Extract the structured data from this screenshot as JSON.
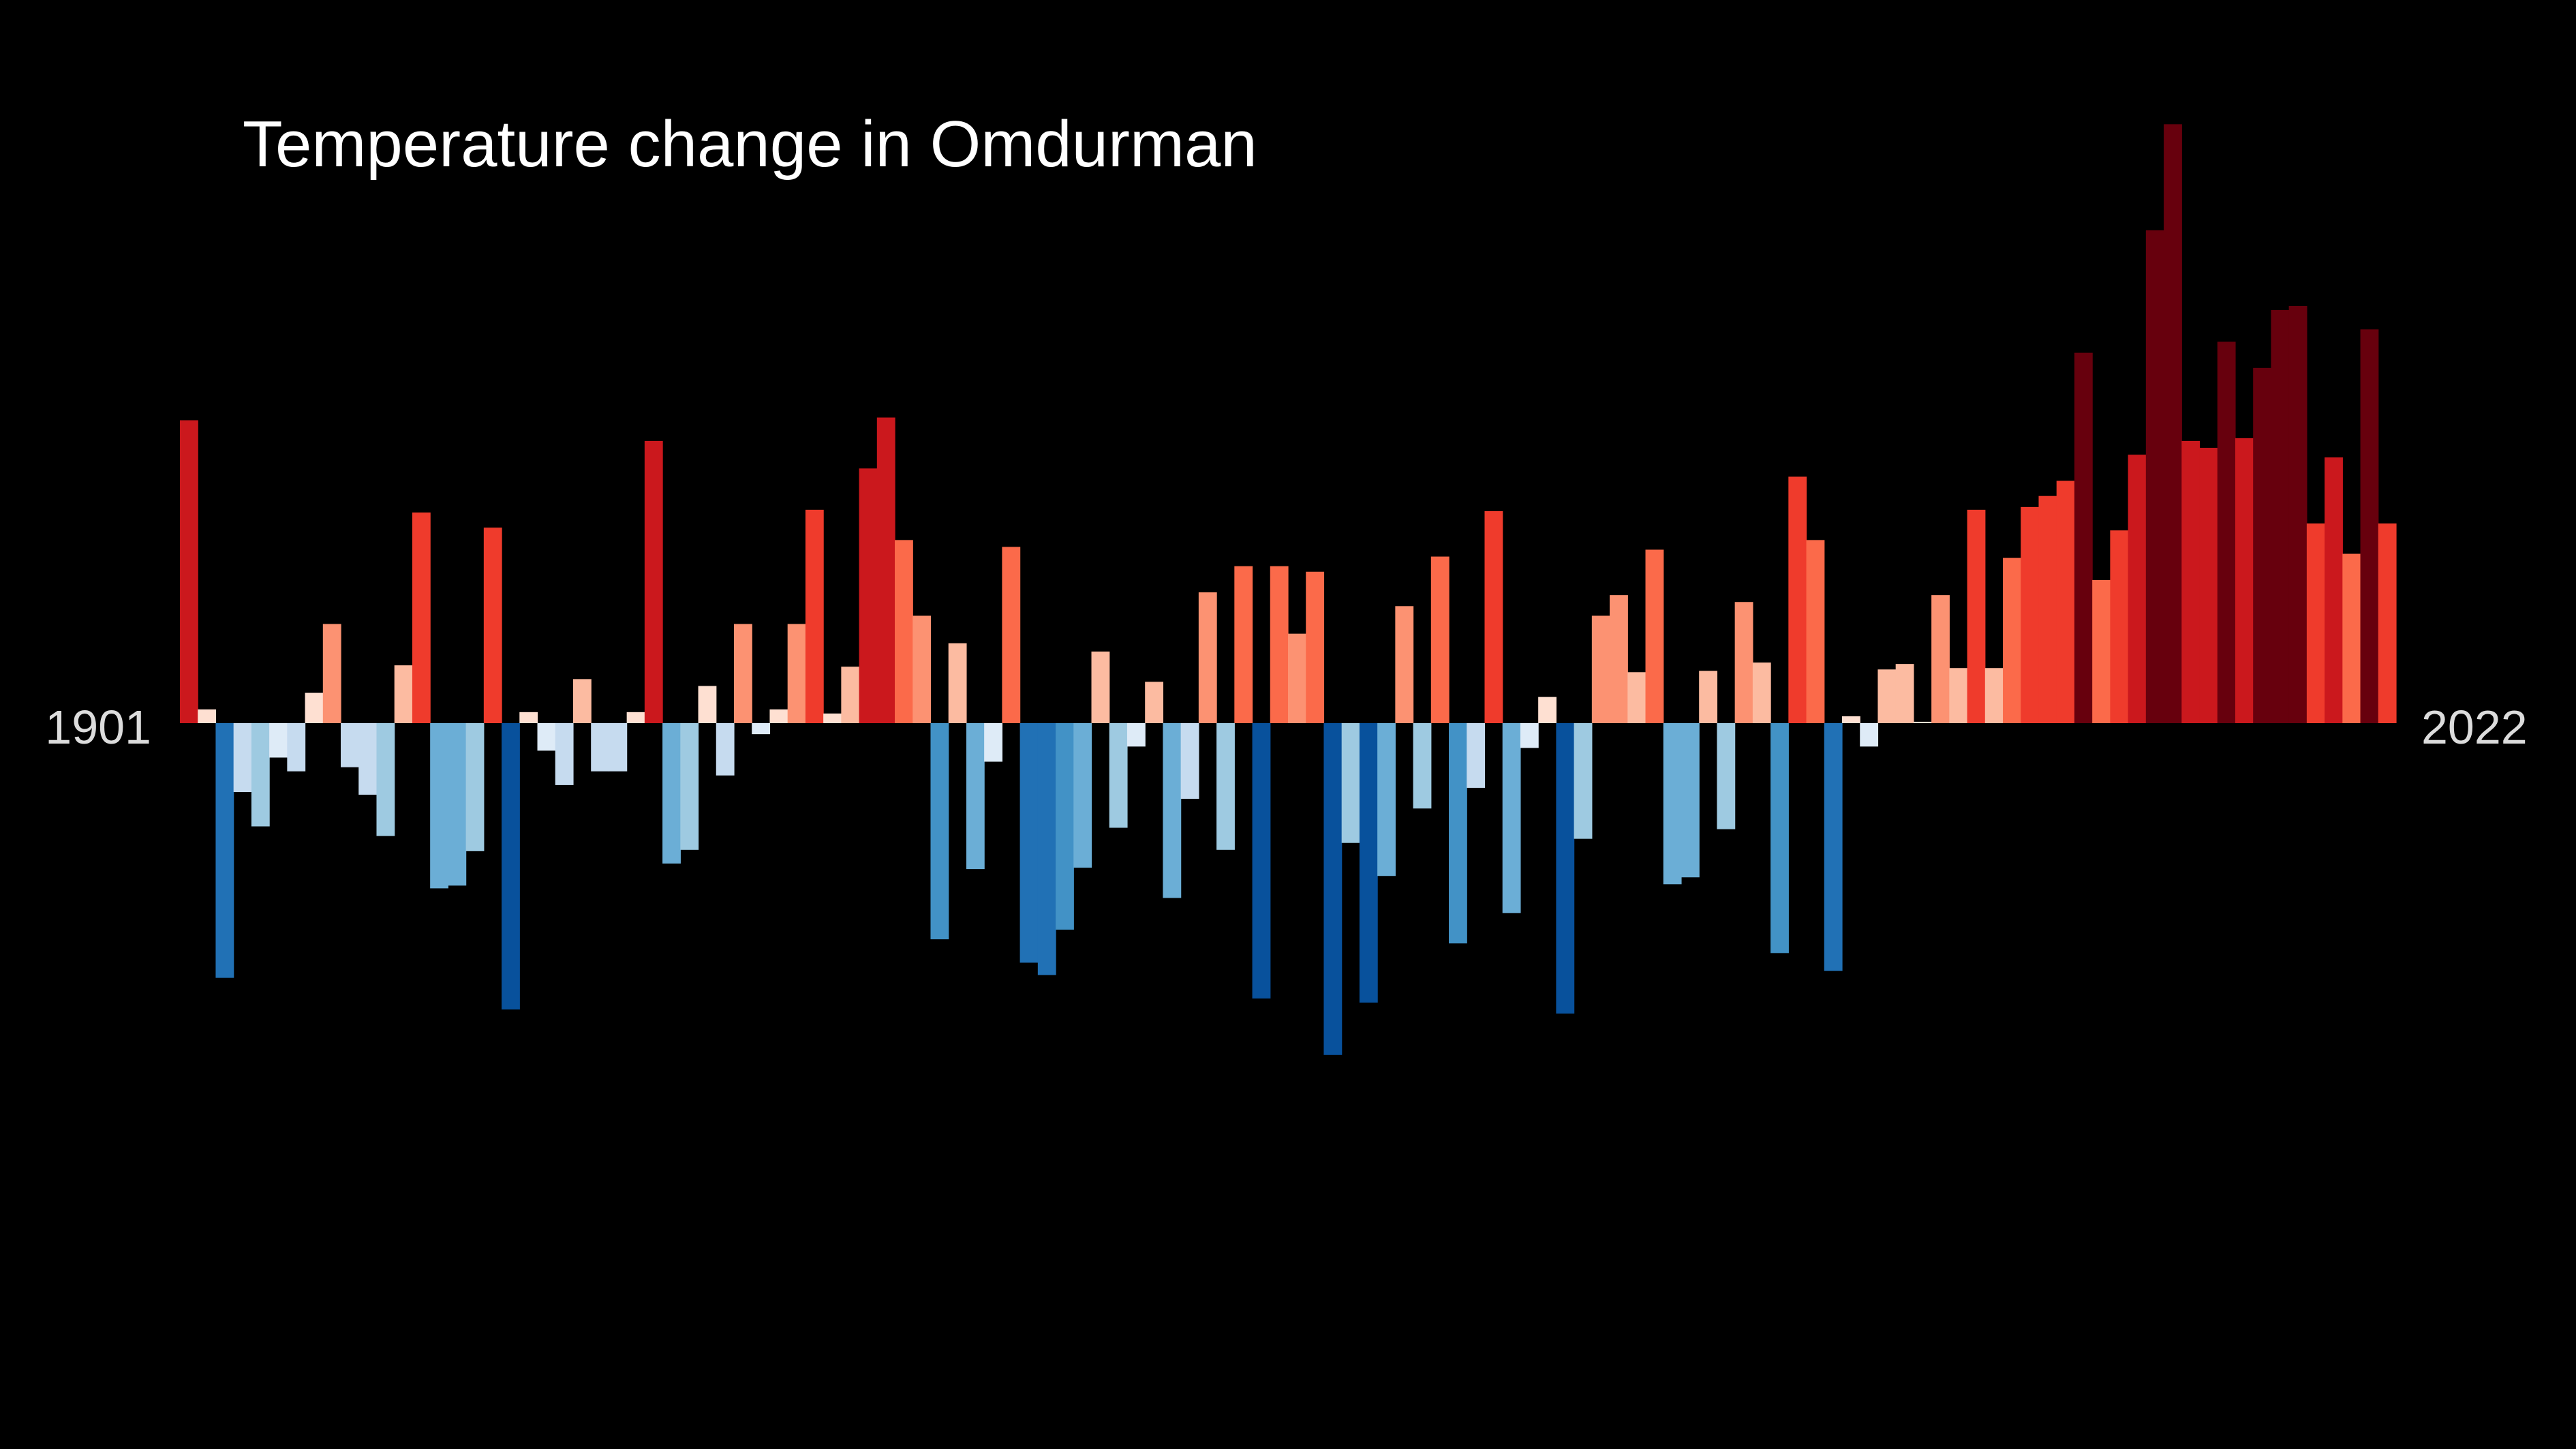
{
  "chart_data": {
    "type": "bar",
    "title": "Temperature change in Omdurman",
    "xlabel": "",
    "ylabel": "",
    "x_start_label": "1901",
    "x_end_label": "2022",
    "x_start": 1901,
    "x_end": 2022,
    "ylim": [
      -2.4,
      4.3
    ],
    "grid": false,
    "legend": "none",
    "background": "#000000",
    "values": [
      2.2,
      0.1,
      -1.85,
      -0.5,
      -0.75,
      -0.25,
      -0.35,
      0.22,
      0.72,
      -0.32,
      -0.52,
      -0.82,
      0.42,
      1.53,
      -1.2,
      -1.18,
      -0.93,
      1.42,
      -2.08,
      0.08,
      -0.2,
      -0.45,
      0.32,
      -0.35,
      -0.35,
      0.08,
      2.05,
      -1.02,
      -0.92,
      0.27,
      -0.38,
      0.72,
      -0.08,
      0.1,
      0.72,
      1.55,
      0.07,
      0.41,
      1.85,
      2.22,
      1.33,
      0.78,
      -1.57,
      0.58,
      -1.06,
      -0.28,
      1.28,
      -1.74,
      -1.83,
      -1.5,
      -1.05,
      0.52,
      -0.76,
      -0.17,
      0.3,
      -1.27,
      -0.55,
      0.95,
      -0.92,
      1.14,
      -2.0,
      1.14,
      0.65,
      1.1,
      -2.41,
      -0.87,
      -2.03,
      -1.11,
      0.85,
      -0.62,
      1.21,
      -1.6,
      -0.47,
      1.54,
      -1.38,
      -0.18,
      0.19,
      -2.11,
      -0.84,
      0.78,
      0.93,
      0.37,
      1.26,
      -1.17,
      -1.12,
      0.38,
      -0.77,
      0.88,
      0.44,
      -1.67,
      1.79,
      1.33,
      -1.8,
      0.05,
      -0.17,
      0.39,
      0.43,
      0.01,
      0.93,
      0.4,
      1.55,
      0.4,
      1.2,
      1.57,
      1.65,
      1.76,
      2.69,
      1.04,
      1.4,
      1.95,
      3.58,
      4.35,
      2.05,
      2.0,
      2.77,
      2.07,
      2.58,
      3.0,
      3.03,
      1.45,
      1.93,
      1.23,
      2.86,
      1.45
    ],
    "colors": {
      "dark_red": "#67000d",
      "red": "#cb181d",
      "orange_red": "#ef3b2c",
      "salmon": "#fb6a4a",
      "light_salmon": "#fc9272",
      "peach": "#fcbba1",
      "pale_pink": "#fee0d2",
      "pale_blue": "#deebf7",
      "light_blue": "#c6dbef",
      "sky_blue": "#9ecae1",
      "mid_blue": "#6baed6",
      "blue": "#4292c6",
      "deep_blue": "#2171b5",
      "navy_blue": "#08519c"
    }
  }
}
